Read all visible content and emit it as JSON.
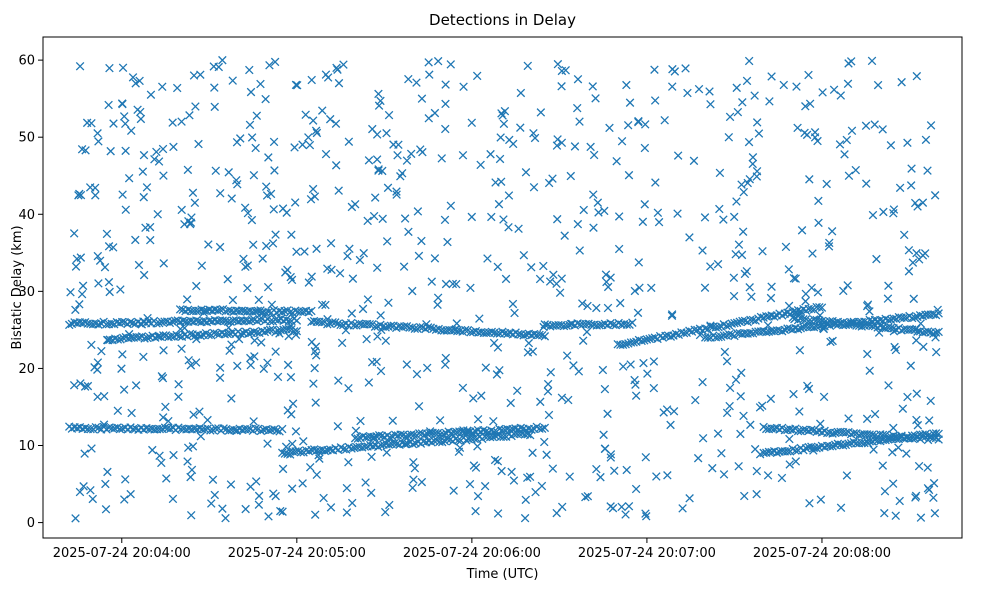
{
  "chart_data": {
    "type": "scatter",
    "title": "Detections in Delay",
    "xlabel": "Time (UTC)",
    "ylabel": "Bistatic Delay (km)",
    "marker": "x",
    "color": "#1f77b4",
    "grid": false,
    "legend": "none",
    "x_range": [
      "2025-07-24 20:03:33",
      "2025-07-24 20:08:48"
    ],
    "ylim": [
      -2,
      63
    ],
    "x_ticks": [
      "2025-07-24 20:04:00",
      "2025-07-24 20:05:00",
      "2025-07-24 20:06:00",
      "2025-07-24 20:07:00",
      "2025-07-24 20:08:00"
    ],
    "y_ticks": [
      0,
      10,
      20,
      30,
      40,
      50,
      60
    ],
    "time_span": [
      "2025-07-24 20:03:42",
      "2025-07-24 20:08:40"
    ],
    "tracks": [
      {
        "start": "2025-07-24 20:03:42",
        "end": "2025-07-24 20:04:55",
        "y": [
          12.3,
          12.0
        ]
      },
      {
        "start": "2025-07-24 20:04:55",
        "end": "2025-07-24 20:06:20",
        "y": [
          9.0,
          11.5
        ]
      },
      {
        "start": "2025-07-24 20:05:20",
        "end": "2025-07-24 20:06:25",
        "y": [
          11.0,
          12.3
        ]
      },
      {
        "start": "2025-07-24 20:07:40",
        "end": "2025-07-24 20:08:40",
        "y": [
          9.0,
          11.5
        ]
      },
      {
        "start": "2025-07-24 20:07:40",
        "end": "2025-07-24 20:08:40",
        "y": [
          12.3,
          10.8
        ]
      },
      {
        "start": "2025-07-24 20:03:42",
        "end": "2025-07-24 20:05:00",
        "y": [
          25.8,
          26.3
        ]
      },
      {
        "start": "2025-07-24 20:03:55",
        "end": "2025-07-24 20:05:00",
        "y": [
          23.8,
          25.0
        ]
      },
      {
        "start": "2025-07-24 20:04:20",
        "end": "2025-07-24 20:05:05",
        "y": [
          27.6,
          27.3
        ]
      },
      {
        "start": "2025-07-24 20:05:05",
        "end": "2025-07-24 20:06:25",
        "y": [
          26.0,
          24.3
        ]
      },
      {
        "start": "2025-07-24 20:06:25",
        "end": "2025-07-24 20:06:55",
        "y": [
          25.6,
          25.8
        ]
      },
      {
        "start": "2025-07-24 20:06:50",
        "end": "2025-07-24 20:08:00",
        "y": [
          23.0,
          28.0
        ]
      },
      {
        "start": "2025-07-24 20:07:20",
        "end": "2025-07-24 20:08:40",
        "y": [
          24.0,
          27.0
        ]
      },
      {
        "start": "2025-07-24 20:07:50",
        "end": "2025-07-24 20:08:40",
        "y": [
          26.5,
          24.6
        ]
      }
    ]
  }
}
